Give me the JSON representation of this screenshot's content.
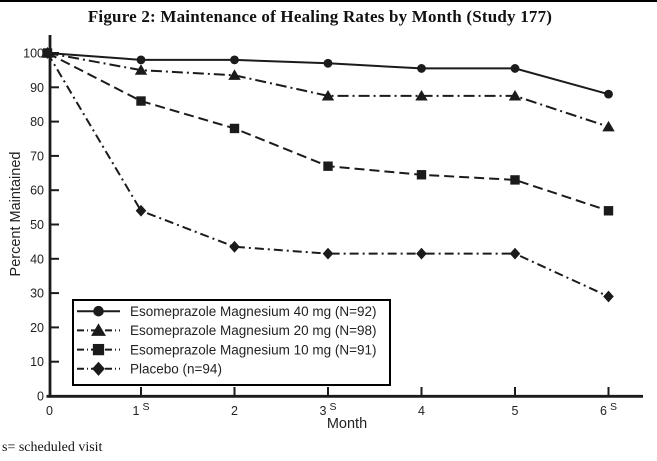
{
  "figure": {
    "title": "Figure 2: Maintenance of Healing Rates by Month (Study 177)",
    "footnote": "s= scheduled visit"
  },
  "chart_data": {
    "type": "line",
    "title": "Figure 2: Maintenance of Healing Rates by Month (Study 177)",
    "xlabel": "Month",
    "ylabel": "Percent Maintained",
    "x": [
      0,
      1,
      2,
      3,
      4,
      5,
      6
    ],
    "x_tick_labels": [
      "0",
      "1",
      "2",
      "3",
      "4",
      "5",
      "6"
    ],
    "scheduled_visit_suffix": "S",
    "scheduled_visit_months": [
      1,
      3,
      6
    ],
    "y_ticks": [
      0,
      10,
      20,
      30,
      40,
      50,
      60,
      70,
      80,
      90,
      100
    ],
    "xlim": [
      0,
      6
    ],
    "ylim": [
      0,
      100
    ],
    "grid": false,
    "legend_position": "inside lower-left",
    "ink_color": "#1b1b1b",
    "series": [
      {
        "name": "Esomeprazole Magnesium 40 mg (N=92)",
        "marker": "circle",
        "line_style": "solid",
        "values": [
          100,
          98,
          98,
          97,
          95.5,
          95.5,
          88
        ]
      },
      {
        "name": "Esomeprazole Magnesium 20 mg (N=98)",
        "marker": "triangle",
        "line_style": "dash-dot",
        "values": [
          100,
          95,
          93.5,
          87.5,
          87.5,
          87.5,
          78.5
        ]
      },
      {
        "name": "Esomeprazole Magnesium 10 mg (N=91)",
        "marker": "square",
        "line_style": "dashed",
        "values": [
          100,
          86,
          78,
          67,
          64.5,
          63,
          54
        ]
      },
      {
        "name": "Placebo (n=94)",
        "marker": "diamond",
        "line_style": "dash-dot-short",
        "values": [
          100,
          54,
          43.5,
          41.5,
          41.5,
          41.5,
          29
        ]
      }
    ]
  }
}
